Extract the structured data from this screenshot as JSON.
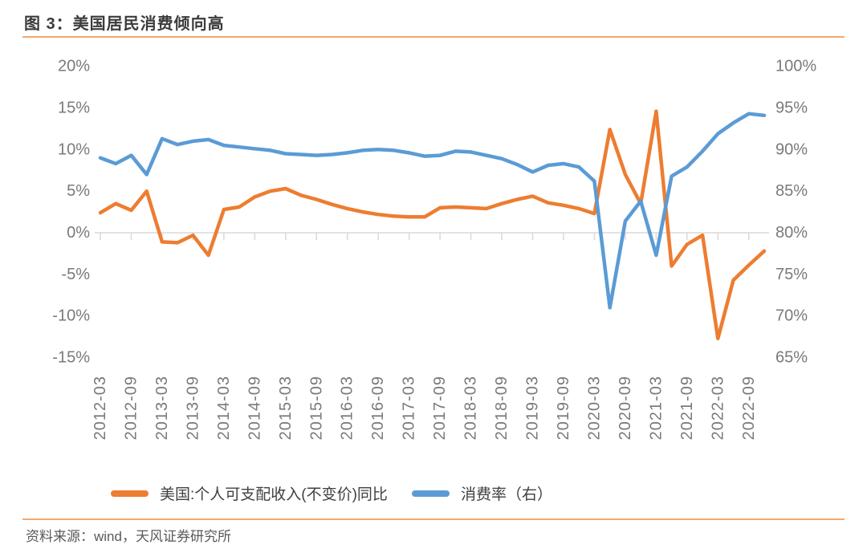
{
  "page": {
    "figure_title": "图 3：美国居民消费倾向高",
    "source": "资料来源：wind，天风证券研究所"
  },
  "chart_data": {
    "type": "line",
    "title": "图 3：美国居民消费倾向高",
    "grid": "zero-line-only",
    "legend_position": "bottom",
    "x": [
      "2012-03",
      "2012-06",
      "2012-09",
      "2012-12",
      "2013-03",
      "2013-06",
      "2013-09",
      "2013-12",
      "2014-03",
      "2014-06",
      "2014-09",
      "2014-12",
      "2015-03",
      "2015-06",
      "2015-09",
      "2015-12",
      "2016-03",
      "2016-06",
      "2016-09",
      "2016-12",
      "2017-03",
      "2017-06",
      "2017-09",
      "2017-12",
      "2018-03",
      "2018-06",
      "2018-09",
      "2018-12",
      "2019-03",
      "2019-06",
      "2019-09",
      "2019-12",
      "2020-03",
      "2020-06",
      "2020-09",
      "2020-12",
      "2021-03",
      "2021-06",
      "2021-09",
      "2021-12",
      "2022-03",
      "2022-06",
      "2022-09",
      "2022-12"
    ],
    "x_tick_labels": [
      "2012-03",
      "2012-09",
      "2013-03",
      "2013-09",
      "2014-03",
      "2014-09",
      "2015-03",
      "2015-09",
      "2016-03",
      "2016-09",
      "2017-03",
      "2017-09",
      "2018-03",
      "2018-09",
      "2019-03",
      "2019-09",
      "2020-03",
      "2020-09",
      "2021-03",
      "2021-09",
      "2022-03",
      "2022-09"
    ],
    "left_axis": {
      "ticks": [
        "20%",
        "15%",
        "10%",
        "5%",
        "0%",
        "-5%",
        "-10%",
        "-15%"
      ],
      "max": 20,
      "min": -15,
      "unit": "%"
    },
    "right_axis": {
      "ticks": [
        "100%",
        "95%",
        "90%",
        "85%",
        "80%",
        "75%",
        "70%",
        "65%"
      ],
      "max": 100,
      "min": 65,
      "unit": "%"
    },
    "series": [
      {
        "name": "美国:个人可支配收入(不变价)同比",
        "axis": "left",
        "color": "#ED7D31",
        "values": [
          2.4,
          3.5,
          2.7,
          5.0,
          -1.1,
          -1.2,
          -0.3,
          -2.7,
          2.8,
          3.1,
          4.3,
          5.0,
          5.3,
          4.5,
          4.0,
          3.4,
          2.9,
          2.5,
          2.2,
          2.0,
          1.9,
          1.9,
          3.0,
          3.1,
          3.0,
          2.9,
          3.5,
          4.0,
          4.4,
          3.6,
          3.3,
          2.9,
          2.3,
          12.4,
          7.0,
          3.5,
          14.6,
          -4.0,
          -1.4,
          -0.3,
          -12.7,
          -5.7,
          -3.9,
          -2.2
        ]
      },
      {
        "name": "消费率（右）",
        "axis": "right",
        "color": "#5B9BD5",
        "values": [
          89.0,
          88.3,
          89.3,
          87.0,
          91.3,
          90.6,
          91.0,
          91.2,
          90.5,
          90.3,
          90.1,
          89.9,
          89.5,
          89.4,
          89.3,
          89.4,
          89.6,
          89.9,
          90.0,
          89.9,
          89.6,
          89.2,
          89.3,
          89.8,
          89.7,
          89.3,
          88.9,
          88.2,
          87.3,
          88.1,
          88.3,
          87.9,
          86.2,
          71.0,
          81.4,
          83.8,
          77.3,
          86.8,
          87.9,
          89.8,
          91.9,
          93.2,
          94.3,
          94.1
        ]
      }
    ],
    "style": {
      "axis_line_color": "#d9d9d9",
      "tick_label_color": "#7a7a7a",
      "accent_rule_color": "#f2a86f"
    }
  }
}
